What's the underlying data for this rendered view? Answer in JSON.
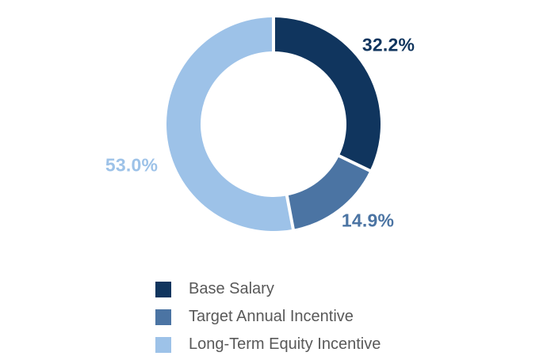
{
  "figure": {
    "background": "#ffffff"
  },
  "chart_data": {
    "type": "pie",
    "subtype": "donut",
    "title": "",
    "units": "%",
    "direction": "clockwise",
    "start_angle_deg": 0,
    "legend_position": "bottom",
    "separator_color": "#ffffff",
    "legend_text_color": "#595959",
    "segments": [
      {
        "label": "Base Salary",
        "value": 32.2,
        "display": "32.2%",
        "color": "#10355E"
      },
      {
        "label": "Target Annual Incentive",
        "value": 14.9,
        "display": "14.9%",
        "color": "#4B74A3"
      },
      {
        "label": "Long-Term Equity Incentive",
        "value": 53.0,
        "display": "53.0%",
        "color": "#9DC2E8"
      }
    ]
  }
}
